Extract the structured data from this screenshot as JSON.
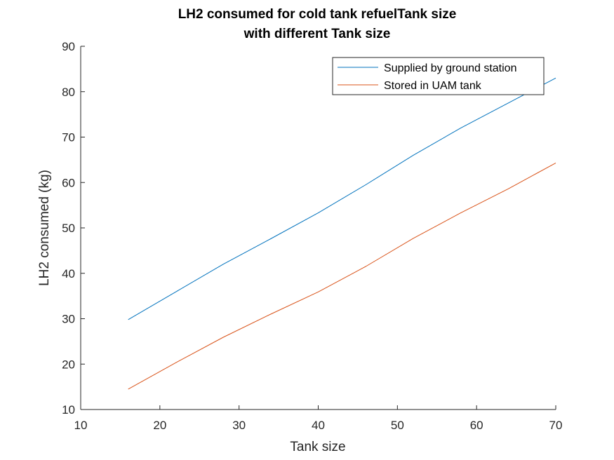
{
  "chart_data": {
    "type": "line",
    "title": [
      "LH2 consumed for cold tank refuelTank size",
      "with different Tank size"
    ],
    "xlabel": "Tank size",
    "ylabel": "LH2 consumed (kg)",
    "xlim": [
      10,
      70
    ],
    "ylim": [
      10,
      90
    ],
    "xticks": [
      10,
      20,
      30,
      40,
      50,
      60,
      70
    ],
    "yticks": [
      10,
      20,
      30,
      40,
      50,
      60,
      70,
      80,
      90
    ],
    "grid": false,
    "legend_position": "top-right",
    "series": [
      {
        "name": "Supplied by ground station",
        "color": "#0072BD",
        "x": [
          16,
          22,
          28,
          34,
          40,
          46,
          52,
          58,
          64,
          70
        ],
        "y": [
          29.8,
          35.9,
          42.0,
          47.6,
          53.3,
          59.5,
          66.0,
          72.0,
          77.5,
          83.0
        ]
      },
      {
        "name": "Stored in UAM tank",
        "color": "#D95319",
        "x": [
          16,
          22,
          28,
          34,
          40,
          46,
          52,
          58,
          64,
          70
        ],
        "y": [
          14.5,
          20.3,
          25.9,
          31.0,
          35.9,
          41.5,
          47.7,
          53.3,
          58.6,
          64.3
        ]
      }
    ]
  }
}
